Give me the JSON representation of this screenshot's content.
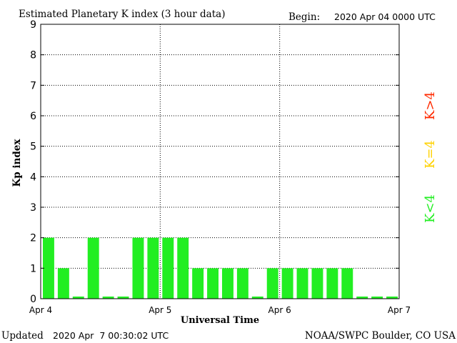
{
  "header": {
    "title": "Estimated Planetary K index (3 hour data)",
    "begin_label": "Begin:",
    "begin_value": "2020 Apr 04 0000 UTC"
  },
  "footer": {
    "updated_label": "Updated",
    "updated_value": "2020 Apr  7 00:30:02 UTC",
    "credit": "NOAA/SWPC Boulder, CO USA"
  },
  "legend": [
    {
      "text": "K>4",
      "color": "#ff2a00"
    },
    {
      "text": "K=4",
      "color": "#ffd200"
    },
    {
      "text": "K<4",
      "color": "#22ee22"
    }
  ],
  "chart_data": {
    "type": "bar",
    "title": "Estimated Planetary K index (3 hour data)",
    "xlabel": "Universal Time",
    "ylabel": "Kp index",
    "ylim": [
      0,
      9
    ],
    "yticks": [
      "0",
      "1",
      "2",
      "3",
      "4",
      "5",
      "6",
      "7",
      "8",
      "9"
    ],
    "xticks": [
      "Apr 4",
      "Apr 5",
      "Apr 6",
      "Apr 7"
    ],
    "values": [
      2,
      1,
      0.07,
      2,
      0.07,
      0.07,
      2,
      2,
      2,
      2,
      1,
      1,
      1,
      1,
      0.07,
      1,
      1,
      1,
      1,
      1,
      1,
      0.07,
      0.07,
      0.07
    ],
    "bar_color": "#22ee22",
    "grid": true
  }
}
